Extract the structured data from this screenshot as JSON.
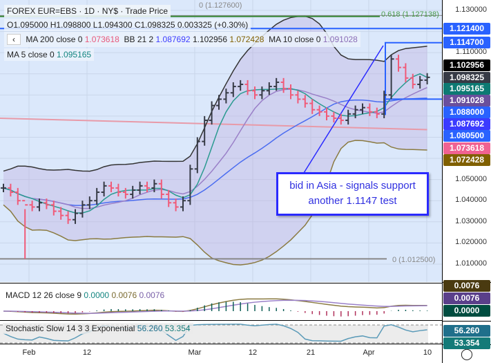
{
  "header": {
    "title": "FOREX EUR=EBS · 1D · NY$ · Trade Price",
    "ohlc": "O1.095000 H1.098800 L1.094300 C1.098325 0.003325 (+0.30%)",
    "collapse_icon": "chevron-left-icon"
  },
  "legend": {
    "ma200": {
      "label": "MA 200 close 0",
      "value": "1.073618",
      "color": "#e8577a"
    },
    "bb": {
      "label": "BB 21 2",
      "v1": "1.087692",
      "v2": "1.102956",
      "v3": "1.072428"
    },
    "ma10": {
      "label": "MA 10 close 0",
      "value": "1.091028",
      "color": "#8a6cb6"
    },
    "ma5": {
      "label": "MA 5 close 0",
      "value": "1.095165",
      "color": "#138580"
    }
  },
  "levels": {
    "top": "0 (1.127600)",
    "fib": "0.618 (1.127138)",
    "bottom": "0 (1.012500)"
  },
  "annotation": {
    "line1": "bid in Asia - signals support",
    "line2": "another 1.1147 test"
  },
  "price_axis": {
    "ticks": [
      "1.130000",
      "1.110000",
      "1.050000",
      "1.040000",
      "1.030000",
      "1.020000",
      "1.010000"
    ],
    "badges": [
      {
        "v": "1.121400",
        "c": "#2962ff"
      },
      {
        "v": "1.114700",
        "c": "#2962ff"
      },
      {
        "v": "1.102956",
        "c": "#000000"
      },
      {
        "v": "1.098325",
        "c": "#363a45"
      },
      {
        "v": "1.095165",
        "c": "#0d7a73"
      },
      {
        "v": "1.091028",
        "c": "#6a4f9c"
      },
      {
        "v": "1.088000",
        "c": "#2962ff"
      },
      {
        "v": "1.087692",
        "c": "#3b3bff"
      },
      {
        "v": "1.080500",
        "c": "#2962ff"
      },
      {
        "v": "1.073618",
        "c": "#f06292"
      },
      {
        "v": "1.072428",
        "c": "#806000"
      }
    ]
  },
  "macd": {
    "label": "MACD 12 26 close 9",
    "v1": "0.0000",
    "v2": "0.0076",
    "v3": "0.0076",
    "badges": [
      {
        "v": "0.0076",
        "c": "#4a3a10"
      },
      {
        "v": "0.0076",
        "c": "#5a3f8a"
      },
      {
        "v": "0.0000",
        "c": "#004d40"
      }
    ]
  },
  "stoch": {
    "label": "Stochastic Slow 14 3 3 Exponential",
    "v1": "56.260",
    "v2": "53.354",
    "badges": [
      {
        "v": "56.260",
        "c": "#1f6f8b"
      },
      {
        "v": "53.354",
        "c": "#147a78"
      }
    ]
  },
  "x_axis": {
    "labels": [
      "Feb",
      "12",
      "Mar",
      "12",
      "21",
      "Apr",
      "10"
    ],
    "settings_icon": "gear-icon"
  },
  "chart_data": {
    "type": "ohlc",
    "closes": [
      1.046,
      1.044,
      1.04,
      1.038,
      1.037,
      1.039,
      1.038,
      1.035,
      1.033,
      1.031,
      1.034,
      1.038,
      1.04,
      1.044,
      1.047,
      1.046,
      1.044,
      1.043,
      1.045,
      1.047,
      1.046,
      1.048,
      1.043,
      1.039,
      1.037,
      1.04,
      1.055,
      1.068,
      1.078,
      1.085,
      1.088,
      1.091,
      1.094,
      1.095,
      1.092,
      1.09,
      1.092,
      1.094,
      1.096,
      1.093,
      1.09,
      1.088,
      1.086,
      1.083,
      1.082,
      1.08,
      1.079,
      1.078,
      1.081,
      1.083,
      1.084,
      1.082,
      1.081,
      1.09,
      1.107,
      1.103,
      1.098,
      1.095,
      1.097,
      1.098325
    ],
    "ma200": [
      1.079,
      1.0736
    ],
    "macd_signal": "0.0076",
    "ylim": [
      1.005,
      1.133
    ]
  }
}
